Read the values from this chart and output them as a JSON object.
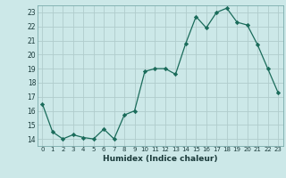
{
  "x": [
    0,
    1,
    2,
    3,
    4,
    5,
    6,
    7,
    8,
    9,
    10,
    11,
    12,
    13,
    14,
    15,
    16,
    17,
    18,
    19,
    20,
    21,
    22,
    23
  ],
  "y": [
    16.5,
    14.5,
    14.0,
    14.3,
    14.1,
    14.0,
    14.7,
    14.0,
    15.7,
    16.0,
    18.8,
    19.0,
    19.0,
    18.6,
    20.8,
    22.7,
    21.9,
    23.0,
    23.3,
    22.3,
    22.1,
    20.7,
    19.0,
    17.3
  ],
  "line_color": "#1a6b5a",
  "marker": "D",
  "marker_size": 2.2,
  "bg_color": "#cce8e8",
  "grid_color": "#b0cccc",
  "xlabel": "Humidex (Indice chaleur)",
  "ylim": [
    13.5,
    23.5
  ],
  "xlim": [
    -0.5,
    23.5
  ],
  "yticks": [
    14,
    15,
    16,
    17,
    18,
    19,
    20,
    21,
    22,
    23
  ],
  "xticks": [
    0,
    1,
    2,
    3,
    4,
    5,
    6,
    7,
    8,
    9,
    10,
    11,
    12,
    13,
    14,
    15,
    16,
    17,
    18,
    19,
    20,
    21,
    22,
    23
  ],
  "xtick_labels": [
    "0",
    "1",
    "2",
    "3",
    "4",
    "5",
    "6",
    "7",
    "8",
    "9",
    "10",
    "11",
    "12",
    "13",
    "14",
    "15",
    "16",
    "17",
    "18",
    "19",
    "20",
    "21",
    "22",
    "23"
  ]
}
